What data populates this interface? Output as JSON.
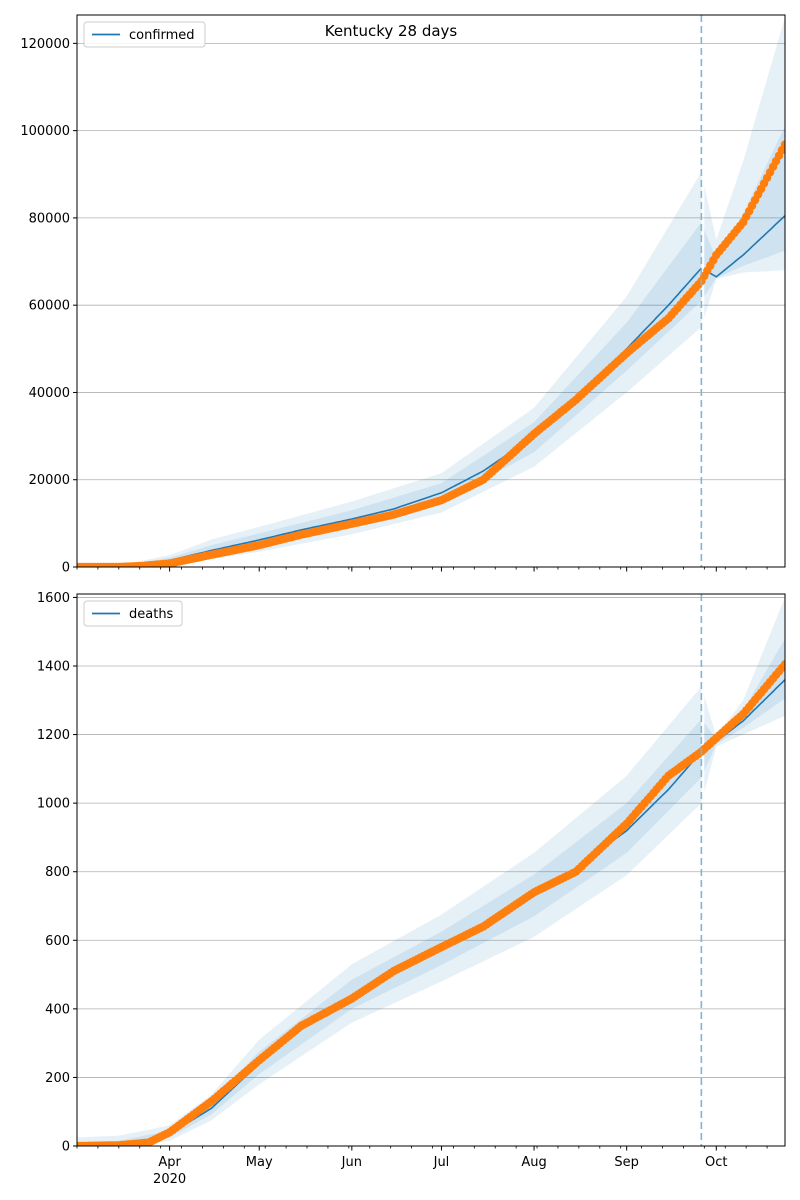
{
  "chart_data": [
    {
      "type": "line",
      "title": "Kentucky 28 days",
      "xlabel": "",
      "ylabel": "",
      "x_type": "date",
      "xlim": [
        "2020-03-01",
        "2020-10-24"
      ],
      "ylim": [
        0,
        126500
      ],
      "yticks": [
        0,
        20000,
        40000,
        60000,
        80000,
        100000,
        120000
      ],
      "ytick_labels": [
        "0",
        "20000",
        "40000",
        "60000",
        "80000",
        "100000",
        "120000"
      ],
      "grid": "y",
      "legend_position": "top-left",
      "forecast_start": "2020-09-26",
      "series": [
        {
          "name": "confirmed",
          "kind": "model",
          "color": "#1f77b4",
          "x": [
            "2020-03-01",
            "2020-03-15",
            "2020-03-22",
            "2020-04-01",
            "2020-04-15",
            "2020-05-01",
            "2020-05-15",
            "2020-06-01",
            "2020-06-15",
            "2020-07-01",
            "2020-07-15",
            "2020-08-01",
            "2020-08-15",
            "2020-09-01",
            "2020-09-15",
            "2020-09-26",
            "2020-10-01",
            "2020-10-10",
            "2020-10-24"
          ],
          "values": [
            0,
            100,
            400,
            1500,
            3800,
            6200,
            8500,
            11000,
            13300,
            17000,
            22000,
            30000,
            38500,
            50000,
            60000,
            68500,
            66500,
            71500,
            80500
          ]
        },
        {
          "name": "",
          "kind": "observed",
          "color": "#ff7f0e",
          "x": [
            "2020-03-01",
            "2020-03-15",
            "2020-03-22",
            "2020-04-01",
            "2020-04-15",
            "2020-05-01",
            "2020-05-15",
            "2020-06-01",
            "2020-06-15",
            "2020-07-01",
            "2020-07-15",
            "2020-08-01",
            "2020-08-15",
            "2020-09-01",
            "2020-09-15",
            "2020-09-26",
            "2020-10-01",
            "2020-10-10",
            "2020-10-24"
          ],
          "values": [
            0,
            30,
            200,
            800,
            2800,
            5000,
            7400,
            9900,
            12000,
            15300,
            20000,
            30500,
            38300,
            49000,
            57000,
            65500,
            71500,
            79000,
            96800
          ]
        }
      ],
      "bands": {
        "color": "#1f77b4",
        "x": [
          "2020-03-01",
          "2020-03-15",
          "2020-04-01",
          "2020-04-15",
          "2020-05-01",
          "2020-06-01",
          "2020-07-01",
          "2020-08-01",
          "2020-09-01",
          "2020-09-26",
          "2020-10-01",
          "2020-10-10",
          "2020-10-24"
        ],
        "center": [
          0,
          100,
          1500,
          3800,
          6200,
          11000,
          17000,
          30000,
          50000,
          68500,
          66500,
          71500,
          80500
        ],
        "lower": [
          [
            0,
            0,
            500,
            1800,
            3500,
            7500,
            12500,
            23000,
            40000,
            55000,
            66000,
            67500,
            68000
          ],
          [
            0,
            40,
            900,
            2700,
            4800,
            9200,
            14800,
            26300,
            45000,
            61000,
            66200,
            69000,
            72500
          ]
        ],
        "upper": [
          [
            0,
            350,
            2700,
            6300,
            9200,
            15000,
            21500,
            36500,
            62000,
            90500,
            75000,
            93000,
            126000
          ],
          [
            0,
            200,
            2100,
            5000,
            7700,
            13000,
            19200,
            33200,
            56000,
            79000,
            70500,
            81000,
            101000
          ]
        ]
      }
    },
    {
      "type": "line",
      "title": "",
      "xlabel": "",
      "ylabel": "",
      "x_type": "date",
      "xlim": [
        "2020-03-01",
        "2020-10-24"
      ],
      "ylim": [
        0,
        1610
      ],
      "yticks": [
        0,
        200,
        400,
        600,
        800,
        1000,
        1200,
        1400,
        1600
      ],
      "ytick_labels": [
        "0",
        "200",
        "400",
        "600",
        "800",
        "1000",
        "1200",
        "1400",
        "1600"
      ],
      "xticks": [
        "2020-04-01",
        "2020-05-01",
        "2020-06-01",
        "2020-07-01",
        "2020-08-01",
        "2020-09-01",
        "2020-10-01"
      ],
      "xtick_labels": [
        "Apr",
        "May",
        "Jun",
        "Jul",
        "Aug",
        "Sep",
        "Oct"
      ],
      "x_year_label": "2020",
      "grid": "y",
      "legend_position": "top-left",
      "forecast_start": "2020-09-26",
      "series": [
        {
          "name": "deaths",
          "kind": "model",
          "color": "#1f77b4",
          "x": [
            "2020-03-01",
            "2020-03-15",
            "2020-03-25",
            "2020-04-01",
            "2020-04-15",
            "2020-05-01",
            "2020-05-15",
            "2020-06-01",
            "2020-06-15",
            "2020-07-01",
            "2020-07-15",
            "2020-08-01",
            "2020-08-15",
            "2020-09-01",
            "2020-09-15",
            "2020-09-26",
            "2020-10-01",
            "2020-10-10",
            "2020-10-24"
          ],
          "values": [
            0,
            5,
            15,
            35,
            110,
            240,
            345,
            440,
            510,
            575,
            650,
            730,
            810,
            920,
            1040,
            1150,
            1180,
            1240,
            1360
          ]
        },
        {
          "name": "",
          "kind": "observed",
          "color": "#ff7f0e",
          "x": [
            "2020-03-01",
            "2020-03-15",
            "2020-03-25",
            "2020-04-01",
            "2020-04-15",
            "2020-05-01",
            "2020-05-15",
            "2020-06-01",
            "2020-06-15",
            "2020-07-01",
            "2020-07-15",
            "2020-08-01",
            "2020-08-15",
            "2020-09-01",
            "2020-09-15",
            "2020-09-26",
            "2020-10-01",
            "2020-10-10",
            "2020-10-24"
          ],
          "values": [
            0,
            2,
            10,
            40,
            130,
            250,
            350,
            430,
            510,
            580,
            640,
            740,
            800,
            940,
            1080,
            1150,
            1190,
            1260,
            1405
          ]
        }
      ],
      "bands": {
        "color": "#1f77b4",
        "x": [
          "2020-03-01",
          "2020-03-15",
          "2020-04-01",
          "2020-04-15",
          "2020-05-01",
          "2020-06-01",
          "2020-07-01",
          "2020-08-01",
          "2020-09-01",
          "2020-09-26",
          "2020-10-01",
          "2020-10-10",
          "2020-10-24"
        ],
        "center": [
          0,
          5,
          35,
          110,
          240,
          440,
          575,
          730,
          920,
          1150,
          1180,
          1240,
          1360
        ],
        "lower": [
          [
            0,
            0,
            15,
            75,
            180,
            360,
            480,
            610,
            790,
            1000,
            1165,
            1200,
            1255
          ],
          [
            0,
            2,
            25,
            92,
            210,
            400,
            528,
            670,
            855,
            1075,
            1172,
            1220,
            1305
          ]
        ],
        "upper": [
          [
            25,
            30,
            60,
            150,
            310,
            530,
            675,
            855,
            1080,
            1340,
            1195,
            1300,
            1600
          ],
          [
            12,
            15,
            45,
            130,
            275,
            485,
            625,
            792,
            1000,
            1245,
            1188,
            1270,
            1480
          ]
        ]
      }
    }
  ]
}
